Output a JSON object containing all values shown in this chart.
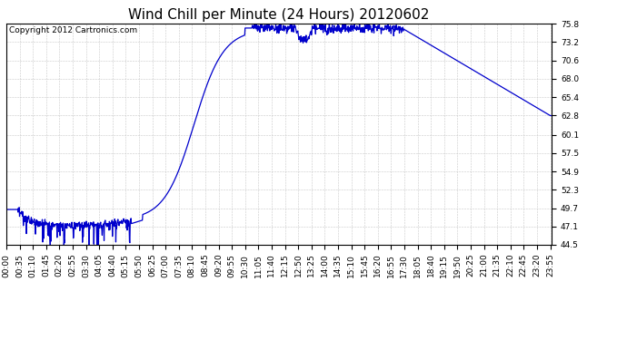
{
  "title": "Wind Chill per Minute (24 Hours) 20120602",
  "copyright_text": "Copyright 2012 Cartronics.com",
  "line_color": "#0000cc",
  "background_color": "#ffffff",
  "plot_bg_color": "#ffffff",
  "grid_color": "#c8c8c8",
  "ylim": [
    44.5,
    75.8
  ],
  "yticks": [
    44.5,
    47.1,
    49.7,
    52.3,
    54.9,
    57.5,
    60.1,
    62.8,
    65.4,
    68.0,
    70.6,
    73.2,
    75.8
  ],
  "title_fontsize": 11,
  "tick_fontsize": 6.5,
  "copyright_fontsize": 6.5,
  "linewidth": 0.9
}
